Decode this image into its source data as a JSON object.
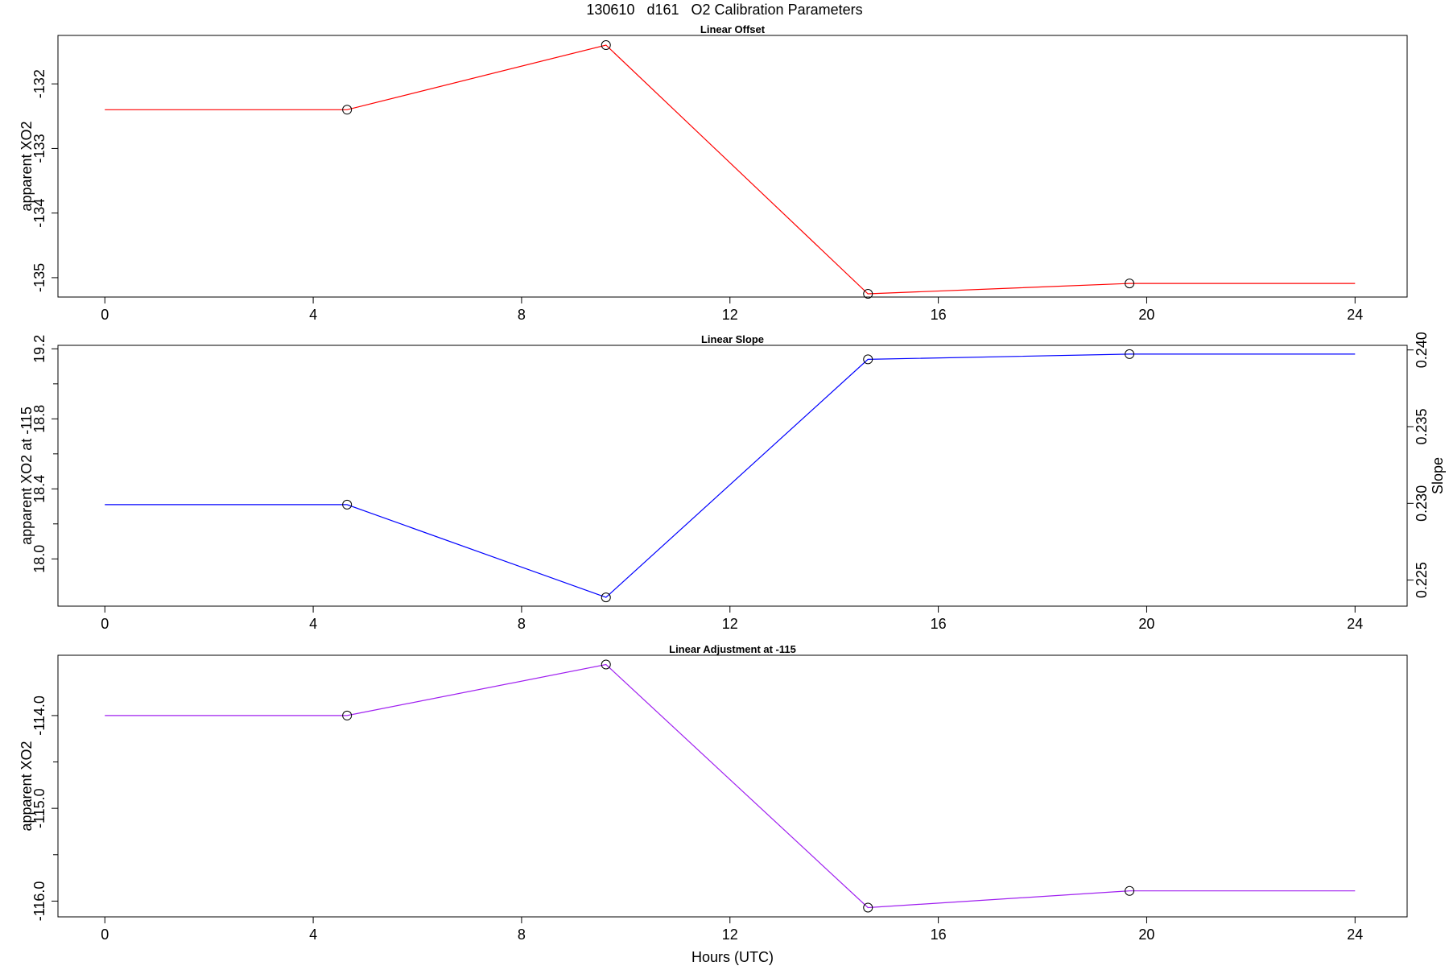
{
  "main_title": "130610   d161   O2 Calibration Parameters",
  "chart_data": [
    {
      "type": "line",
      "title": "Linear Offset",
      "ylabel": "apparent XO2",
      "xlabel": "",
      "color": "#ff0000",
      "x": [
        0,
        4.65,
        9.62,
        14.65,
        19.67,
        24
      ],
      "y": [
        -132.4,
        -132.4,
        -131.4,
        -135.25,
        -135.09,
        -135.09
      ],
      "marker_points": [
        1,
        2,
        3,
        4
      ],
      "xlim": [
        -0.9,
        25
      ],
      "ylim": [
        -135.3,
        -131.25
      ],
      "x_ticks": [
        0,
        4,
        8,
        12,
        16,
        20,
        24
      ],
      "x_tick_labels": [
        "0",
        "4",
        "8",
        "12",
        "16",
        "20",
        "24"
      ],
      "y_ticks": [
        -135,
        -134,
        -133,
        -132
      ],
      "y_tick_labels": [
        "-135",
        "-134",
        "-133",
        "-132"
      ],
      "y_minor_ticks": [],
      "grid": false,
      "legend": "none"
    },
    {
      "type": "line",
      "title": "Linear Slope",
      "ylabel": "apparent XO2 at -115",
      "ylabel_right": "Slope",
      "xlabel": "",
      "color": "#0000ff",
      "x": [
        0,
        4.65,
        9.62,
        14.65,
        19.67,
        24
      ],
      "y": [
        18.31,
        18.31,
        17.78,
        19.14,
        19.17,
        19.17
      ],
      "marker_points": [
        1,
        2,
        3,
        4
      ],
      "xlim": [
        -0.9,
        25
      ],
      "ylim": [
        17.73,
        19.22
      ],
      "x_ticks": [
        0,
        4,
        8,
        12,
        16,
        20,
        24
      ],
      "x_tick_labels": [
        "0",
        "4",
        "8",
        "12",
        "16",
        "20",
        "24"
      ],
      "y_ticks": [
        18.0,
        18.4,
        18.8,
        19.2
      ],
      "y_tick_labels": [
        "18.0",
        "18.4",
        "18.8",
        "19.2"
      ],
      "y_minor_ticks": [
        18.2,
        18.6,
        19.0
      ],
      "right_axis": {
        "ylim": [
          0.2233,
          0.2403
        ],
        "ticks": [
          0.225,
          0.23,
          0.235,
          0.24
        ],
        "tick_labels": [
          "0.225",
          "0.230",
          "0.235",
          "0.240"
        ]
      },
      "grid": false,
      "legend": "none"
    },
    {
      "type": "line",
      "title": "Linear Adjustment at -115",
      "ylabel": "apparent XO2",
      "xlabel": "Hours (UTC)",
      "color": "#a020f0",
      "x": [
        0,
        4.65,
        9.62,
        14.65,
        19.67,
        24
      ],
      "y": [
        -114.0,
        -114.0,
        -113.45,
        -116.07,
        -115.89,
        -115.89
      ],
      "marker_points": [
        1,
        2,
        3,
        4
      ],
      "xlim": [
        -0.9,
        25
      ],
      "ylim": [
        -116.17,
        -113.35
      ],
      "x_ticks": [
        0,
        4,
        8,
        12,
        16,
        20,
        24
      ],
      "x_tick_labels": [
        "0",
        "4",
        "8",
        "12",
        "16",
        "20",
        "24"
      ],
      "y_ticks": [
        -116.0,
        -115.0,
        -114.0
      ],
      "y_tick_labels": [
        "-116.0",
        "-115.0",
        "-114.0"
      ],
      "y_minor_ticks": [
        -115.5,
        -114.5
      ],
      "grid": false,
      "legend": "none"
    }
  ]
}
